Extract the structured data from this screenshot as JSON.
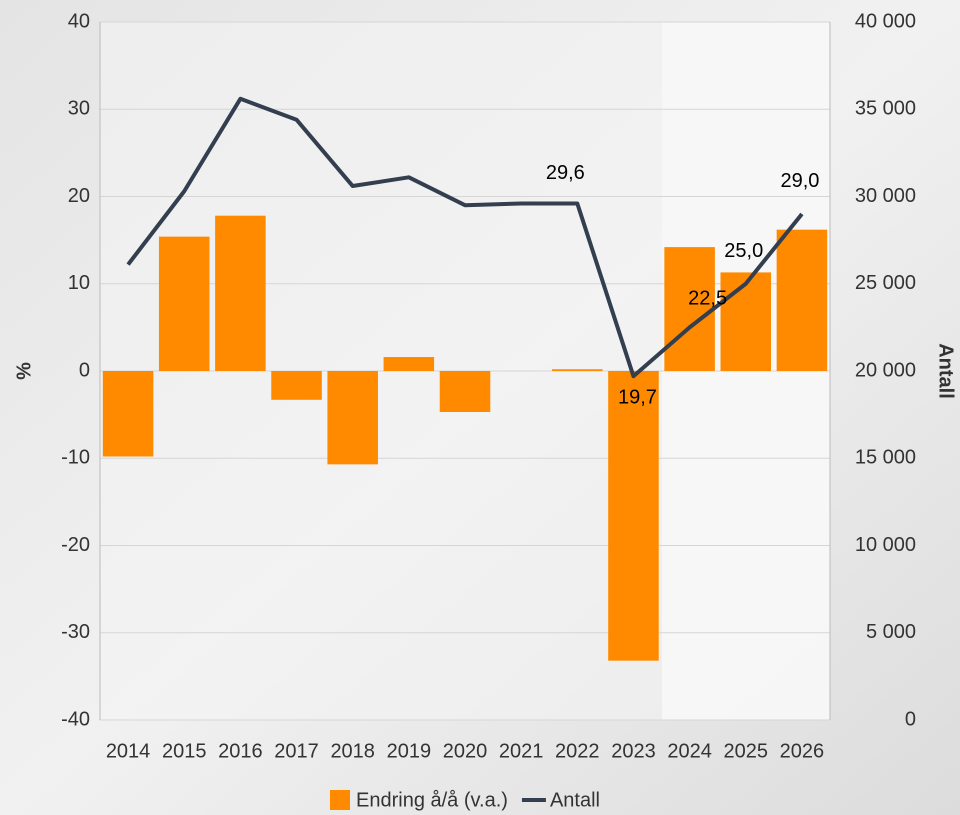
{
  "chart_data": {
    "type": "bar-line",
    "categories": [
      "2014",
      "2015",
      "2016",
      "2017",
      "2018",
      "2019",
      "2020",
      "2021",
      "2022",
      "2023",
      "2024",
      "2025",
      "2026"
    ],
    "series": [
      {
        "name": "Endring å/å (v.a.)",
        "type": "bar",
        "color": "#ff8a00",
        "values": [
          -9.8,
          15.4,
          17.8,
          -3.3,
          -10.7,
          1.6,
          -4.7,
          0,
          0.2,
          -33.2,
          14.2,
          11.3,
          16.2
        ]
      },
      {
        "name": "Antall",
        "type": "line",
        "axis": "y2",
        "color": "#333f4f",
        "values": [
          26100,
          30300,
          35600,
          34400,
          30600,
          31100,
          29500,
          29600,
          29600,
          19700,
          22500,
          25000,
          29000
        ],
        "value_labels": [
          null,
          null,
          null,
          null,
          null,
          null,
          null,
          null,
          "29,6",
          "19,7",
          "22,5",
          "25,0",
          "29,0"
        ]
      }
    ],
    "ylabel": "%",
    "y2label": "Antall",
    "ylim": [
      -40,
      40
    ],
    "yticks": [
      -40,
      -30,
      -20,
      -10,
      0,
      10,
      20,
      30,
      40
    ],
    "y2lim": [
      0,
      40000
    ],
    "y2ticks": [
      0,
      {
        "value": 5000,
        "label": "5 000"
      },
      {
        "value": 10000,
        "label": "10 000"
      },
      {
        "value": 15000,
        "label": "15 000"
      },
      {
        "value": 20000,
        "label": "20 000"
      },
      {
        "value": 25000,
        "label": "25 000"
      },
      {
        "value": 30000,
        "label": "30 000"
      },
      {
        "value": 35000,
        "label": "35 000"
      },
      {
        "value": 40000,
        "label": "40 000"
      }
    ],
    "grid": true
  }
}
